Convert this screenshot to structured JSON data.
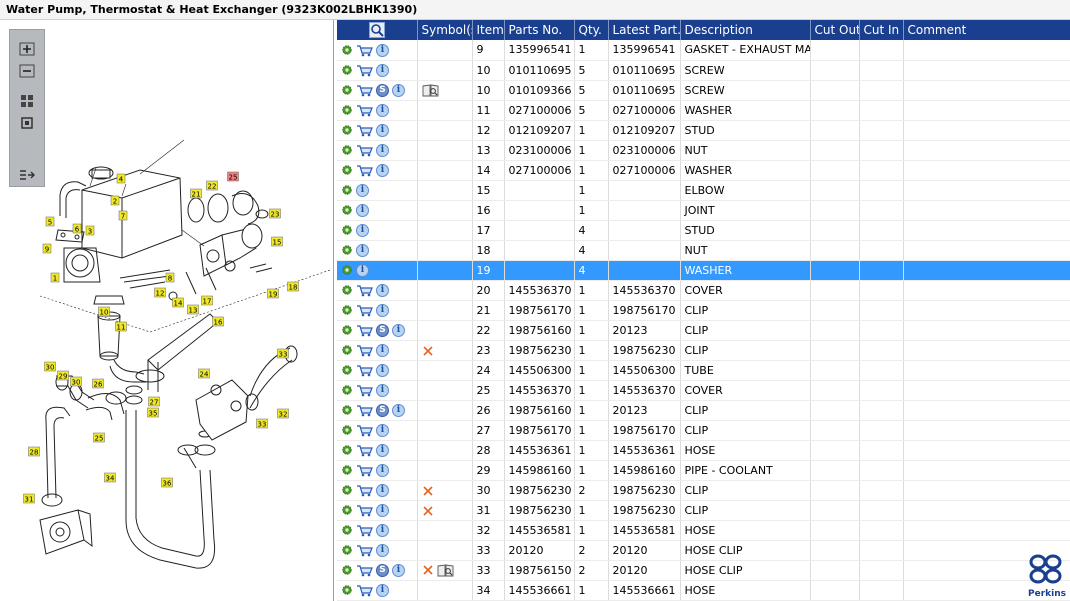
{
  "title": "Water Pump, Thermostat & Heat Exchanger (9323K002LBHK1390)",
  "toolbar": {
    "zoom_in_icon": "plus-magnifier",
    "zoom_out_icon": "minus-magnifier",
    "fit_icon": "four-squares",
    "actual_size_icon": "single-square",
    "toggle_list_icon": "list-arrow"
  },
  "diagram": {
    "callouts": [
      {
        "label": "4",
        "highlight": false
      },
      {
        "label": "2",
        "highlight": false
      },
      {
        "label": "7",
        "highlight": false
      },
      {
        "label": "3",
        "highlight": false
      },
      {
        "label": "5",
        "highlight": false
      },
      {
        "label": "6",
        "highlight": false
      },
      {
        "label": "9",
        "highlight": false
      },
      {
        "label": "1",
        "highlight": false
      },
      {
        "label": "21",
        "highlight": false
      },
      {
        "label": "22",
        "highlight": false
      },
      {
        "label": "25",
        "highlight": true
      },
      {
        "label": "23",
        "highlight": false
      },
      {
        "label": "15",
        "highlight": false
      },
      {
        "label": "8",
        "highlight": false
      },
      {
        "label": "10",
        "highlight": false
      },
      {
        "label": "12",
        "highlight": false
      },
      {
        "label": "14",
        "highlight": false
      },
      {
        "label": "13",
        "highlight": false
      },
      {
        "label": "16",
        "highlight": false
      },
      {
        "label": "17",
        "highlight": false
      },
      {
        "label": "19",
        "highlight": false
      },
      {
        "label": "18",
        "highlight": false
      },
      {
        "label": "11",
        "highlight": false
      },
      {
        "label": "24",
        "highlight": false
      },
      {
        "label": "33",
        "highlight": false
      },
      {
        "label": "30",
        "highlight": false
      },
      {
        "label": "29",
        "highlight": false
      },
      {
        "label": "30",
        "highlight": false
      },
      {
        "label": "26",
        "highlight": false
      },
      {
        "label": "27",
        "highlight": false
      },
      {
        "label": "35",
        "highlight": false
      },
      {
        "label": "25",
        "highlight": false
      },
      {
        "label": "32",
        "highlight": false
      },
      {
        "label": "33",
        "highlight": false
      },
      {
        "label": "28",
        "highlight": false
      },
      {
        "label": "34",
        "highlight": false
      },
      {
        "label": "36",
        "highlight": false
      },
      {
        "label": "31",
        "highlight": false
      }
    ]
  },
  "grid": {
    "columns": [
      "",
      "Symbol(s)",
      "Item",
      "Parts No.",
      "Qty.",
      "Latest Part...",
      "Description",
      "Cut Out",
      "Cut In",
      "Comment"
    ],
    "header_icon": "search-icon",
    "selected_row": 11,
    "rows": [
      {
        "cart": true,
        "s": false,
        "sym": "",
        "item": "9",
        "part": "135996541",
        "qty": "1",
        "latest": "135996541",
        "desc": "GASKET - EXHAUST MANI",
        "cutout": "",
        "cutin": "",
        "comment": ""
      },
      {
        "cart": true,
        "s": false,
        "sym": "",
        "item": "10",
        "part": "010110695",
        "qty": "5",
        "latest": "010110695",
        "desc": "SCREW",
        "cutout": "",
        "cutin": "",
        "comment": ""
      },
      {
        "cart": true,
        "s": true,
        "sym": "book",
        "item": "10",
        "part": "010109366",
        "qty": "5",
        "latest": "010110695",
        "desc": "SCREW",
        "cutout": "",
        "cutin": "",
        "comment": ""
      },
      {
        "cart": true,
        "s": false,
        "sym": "",
        "item": "11",
        "part": "027100006",
        "qty": "5",
        "latest": "027100006",
        "desc": "WASHER",
        "cutout": "",
        "cutin": "",
        "comment": ""
      },
      {
        "cart": true,
        "s": false,
        "sym": "",
        "item": "12",
        "part": "012109207",
        "qty": "1",
        "latest": "012109207",
        "desc": "STUD",
        "cutout": "",
        "cutin": "",
        "comment": ""
      },
      {
        "cart": true,
        "s": false,
        "sym": "",
        "item": "13",
        "part": "023100006",
        "qty": "1",
        "latest": "023100006",
        "desc": "NUT",
        "cutout": "",
        "cutin": "",
        "comment": ""
      },
      {
        "cart": true,
        "s": false,
        "sym": "",
        "item": "14",
        "part": "027100006",
        "qty": "1",
        "latest": "027100006",
        "desc": "WASHER",
        "cutout": "",
        "cutin": "",
        "comment": ""
      },
      {
        "cart": false,
        "s": false,
        "sym": "",
        "item": "15",
        "part": "",
        "qty": "1",
        "latest": "",
        "desc": "ELBOW",
        "cutout": "",
        "cutin": "",
        "comment": ""
      },
      {
        "cart": false,
        "s": false,
        "sym": "",
        "item": "16",
        "part": "",
        "qty": "1",
        "latest": "",
        "desc": "JOINT",
        "cutout": "",
        "cutin": "",
        "comment": ""
      },
      {
        "cart": false,
        "s": false,
        "sym": "",
        "item": "17",
        "part": "",
        "qty": "4",
        "latest": "",
        "desc": "STUD",
        "cutout": "",
        "cutin": "",
        "comment": ""
      },
      {
        "cart": false,
        "s": false,
        "sym": "",
        "item": "18",
        "part": "",
        "qty": "4",
        "latest": "",
        "desc": "NUT",
        "cutout": "",
        "cutin": "",
        "comment": ""
      },
      {
        "cart": false,
        "s": false,
        "sym": "",
        "item": "19",
        "part": "",
        "qty": "4",
        "latest": "",
        "desc": "WASHER",
        "cutout": "",
        "cutin": "",
        "comment": ""
      },
      {
        "cart": true,
        "s": false,
        "sym": "",
        "item": "20",
        "part": "145536370",
        "qty": "1",
        "latest": "145536370",
        "desc": "COVER",
        "cutout": "",
        "cutin": "",
        "comment": ""
      },
      {
        "cart": true,
        "s": false,
        "sym": "",
        "item": "21",
        "part": "198756170",
        "qty": "1",
        "latest": "198756170",
        "desc": "CLIP",
        "cutout": "",
        "cutin": "",
        "comment": ""
      },
      {
        "cart": true,
        "s": true,
        "sym": "",
        "item": "22",
        "part": "198756160",
        "qty": "1",
        "latest": "20123",
        "desc": "CLIP",
        "cutout": "",
        "cutin": "",
        "comment": ""
      },
      {
        "cart": true,
        "s": false,
        "sym": "x",
        "item": "23",
        "part": "198756230",
        "qty": "1",
        "latest": "198756230",
        "desc": "CLIP",
        "cutout": "",
        "cutin": "",
        "comment": ""
      },
      {
        "cart": true,
        "s": false,
        "sym": "",
        "item": "24",
        "part": "145506300",
        "qty": "1",
        "latest": "145506300",
        "desc": "TUBE",
        "cutout": "",
        "cutin": "",
        "comment": ""
      },
      {
        "cart": true,
        "s": false,
        "sym": "",
        "item": "25",
        "part": "145536370",
        "qty": "1",
        "latest": "145536370",
        "desc": "COVER",
        "cutout": "",
        "cutin": "",
        "comment": ""
      },
      {
        "cart": true,
        "s": true,
        "sym": "",
        "item": "26",
        "part": "198756160",
        "qty": "1",
        "latest": "20123",
        "desc": "CLIP",
        "cutout": "",
        "cutin": "",
        "comment": ""
      },
      {
        "cart": true,
        "s": false,
        "sym": "",
        "item": "27",
        "part": "198756170",
        "qty": "1",
        "latest": "198756170",
        "desc": "CLIP",
        "cutout": "",
        "cutin": "",
        "comment": ""
      },
      {
        "cart": true,
        "s": false,
        "sym": "",
        "item": "28",
        "part": "145536361",
        "qty": "1",
        "latest": "145536361",
        "desc": "HOSE",
        "cutout": "",
        "cutin": "",
        "comment": ""
      },
      {
        "cart": true,
        "s": false,
        "sym": "",
        "item": "29",
        "part": "145986160",
        "qty": "1",
        "latest": "145986160",
        "desc": "PIPE - COOLANT",
        "cutout": "",
        "cutin": "",
        "comment": ""
      },
      {
        "cart": true,
        "s": false,
        "sym": "x",
        "item": "30",
        "part": "198756230",
        "qty": "2",
        "latest": "198756230",
        "desc": "CLIP",
        "cutout": "",
        "cutin": "",
        "comment": ""
      },
      {
        "cart": true,
        "s": false,
        "sym": "x",
        "item": "31",
        "part": "198756230",
        "qty": "1",
        "latest": "198756230",
        "desc": "CLIP",
        "cutout": "",
        "cutin": "",
        "comment": ""
      },
      {
        "cart": true,
        "s": false,
        "sym": "",
        "item": "32",
        "part": "145536581",
        "qty": "1",
        "latest": "145536581",
        "desc": "HOSE",
        "cutout": "",
        "cutin": "",
        "comment": ""
      },
      {
        "cart": true,
        "s": false,
        "sym": "",
        "item": "33",
        "part": "20120",
        "qty": "2",
        "latest": "20120",
        "desc": "HOSE CLIP",
        "cutout": "",
        "cutin": "",
        "comment": ""
      },
      {
        "cart": true,
        "s": true,
        "sym": "xbook",
        "item": "33",
        "part": "198756150",
        "qty": "2",
        "latest": "20120",
        "desc": "HOSE CLIP",
        "cutout": "",
        "cutin": "",
        "comment": ""
      },
      {
        "cart": true,
        "s": false,
        "sym": "",
        "item": "34",
        "part": "145536661",
        "qty": "1",
        "latest": "145536661",
        "desc": "HOSE",
        "cutout": "",
        "cutin": "",
        "comment": ""
      }
    ]
  },
  "brand": {
    "name": "Perkins",
    "color": "#1a3f8f"
  },
  "colors": {
    "header_bg": "#1a3f8f",
    "selected_row": "#3399ff",
    "callout": "#f0e92a",
    "callout_highlight": "#f08080"
  }
}
